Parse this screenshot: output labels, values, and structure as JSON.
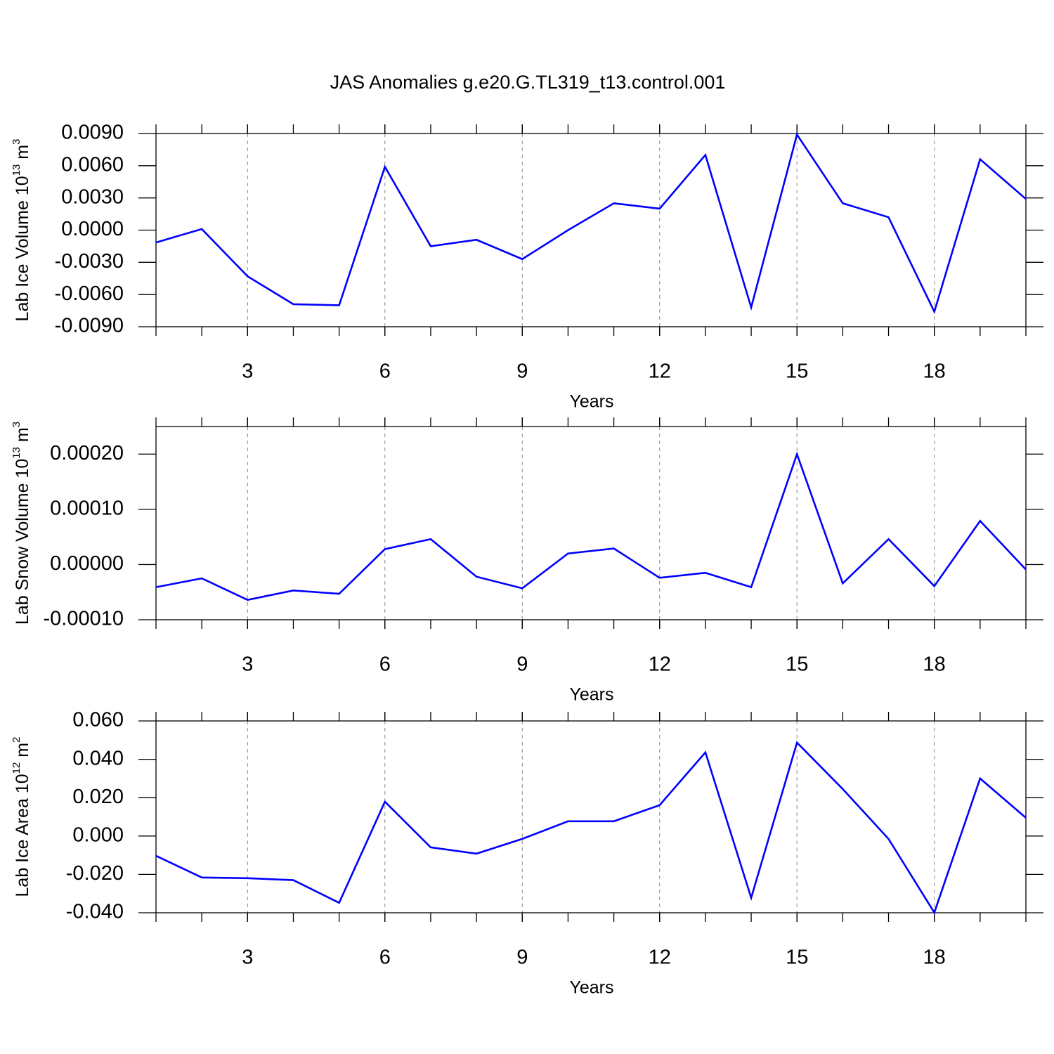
{
  "title": "JAS Anomalies g.e20.G.TL319_t13.control.001",
  "chart_data": [
    {
      "type": "line",
      "xlabel": "Years",
      "ylabel": [
        "Lab Ice Volume 10",
        "13",
        " m",
        "3"
      ],
      "x": [
        1,
        2,
        3,
        4,
        5,
        6,
        7,
        8,
        9,
        10,
        11,
        12,
        13,
        14,
        15,
        16,
        17,
        18,
        19,
        20
      ],
      "values": [
        -0.00115,
        0.0001,
        -0.0043,
        -0.0069,
        -0.007,
        0.0059,
        -0.0015,
        -0.0009,
        -0.0027,
        0.0,
        0.0025,
        0.002,
        0.007,
        -0.0072,
        0.0089,
        0.0025,
        0.0012,
        -0.0076,
        0.0066,
        0.0029
      ],
      "color": "#0000ff",
      "xlim": [
        1,
        20
      ],
      "xticks": [
        3,
        6,
        9,
        12,
        15,
        18
      ],
      "xminorticks": [
        1,
        2,
        3,
        4,
        5,
        6,
        7,
        8,
        9,
        10,
        11,
        12,
        13,
        14,
        15,
        16,
        17,
        18,
        19,
        20
      ],
      "ylim": [
        -0.009,
        0.009
      ],
      "yticks": [
        {
          "value": -0.009,
          "label": "-0.0090"
        },
        {
          "value": -0.006,
          "label": "-0.0060"
        },
        {
          "value": -0.003,
          "label": "-0.0030"
        },
        {
          "value": 0,
          "label": "0.0000"
        },
        {
          "value": 0.003,
          "label": "0.0030"
        },
        {
          "value": 0.006,
          "label": "0.0060"
        },
        {
          "value": 0.009,
          "label": "0.0090"
        }
      ],
      "grid": true
    },
    {
      "type": "line",
      "xlabel": "Years",
      "ylabel": [
        "Lab Snow Volume 10",
        "13",
        " m",
        "3"
      ],
      "x": [
        1,
        2,
        3,
        4,
        5,
        6,
        7,
        8,
        9,
        10,
        11,
        12,
        13,
        14,
        15,
        16,
        17,
        18,
        19,
        20
      ],
      "values": [
        -4.1e-05,
        -2.5e-05,
        -6.4e-05,
        -4.7e-05,
        -5.3e-05,
        2.8e-05,
        4.6e-05,
        -2.2e-05,
        -4.3e-05,
        2e-05,
        2.9e-05,
        -2.4e-05,
        -1.5e-05,
        -4.1e-05,
        0.0002,
        -3.4e-05,
        4.6e-05,
        -3.9e-05,
        7.9e-05,
        -9e-06
      ],
      "color": "#0000ff",
      "xlim": [
        1,
        20
      ],
      "xticks": [
        3,
        6,
        9,
        12,
        15,
        18
      ],
      "xminorticks": [
        1,
        2,
        3,
        4,
        5,
        6,
        7,
        8,
        9,
        10,
        11,
        12,
        13,
        14,
        15,
        16,
        17,
        18,
        19,
        20
      ],
      "ylim": [
        -0.0001,
        0.00025
      ],
      "yticks": [
        {
          "value": -0.0001,
          "label": "-0.00010"
        },
        {
          "value": 0,
          "label": "0.00000"
        },
        {
          "value": 0.0001,
          "label": "0.00010"
        },
        {
          "value": 0.0002,
          "label": "0.00020"
        }
      ],
      "grid": true
    },
    {
      "type": "line",
      "xlabel": "Years",
      "ylabel": [
        "Lab Ice Area 10",
        "12",
        " m",
        "2"
      ],
      "x": [
        1,
        2,
        3,
        4,
        5,
        6,
        7,
        8,
        9,
        10,
        11,
        12,
        13,
        14,
        15,
        16,
        17,
        18,
        19,
        20
      ],
      "values": [
        -0.0103,
        -0.0216,
        -0.022,
        -0.023,
        -0.0348,
        0.0179,
        -0.0059,
        -0.0092,
        -0.0015,
        0.0077,
        0.0077,
        0.0161,
        0.0436,
        -0.0322,
        0.0487,
        0.0245,
        -0.0015,
        -0.0399,
        0.03,
        0.0095
      ],
      "color": "#0000ff",
      "xlim": [
        1,
        20
      ],
      "xticks": [
        3,
        6,
        9,
        12,
        15,
        18
      ],
      "xminorticks": [
        1,
        2,
        3,
        4,
        5,
        6,
        7,
        8,
        9,
        10,
        11,
        12,
        13,
        14,
        15,
        16,
        17,
        18,
        19,
        20
      ],
      "ylim": [
        -0.04,
        0.06
      ],
      "yticks": [
        {
          "value": -0.04,
          "label": "-0.040"
        },
        {
          "value": -0.02,
          "label": "-0.020"
        },
        {
          "value": 0,
          "label": "0.000"
        },
        {
          "value": 0.02,
          "label": "0.020"
        },
        {
          "value": 0.04,
          "label": "0.040"
        },
        {
          "value": 0.06,
          "label": "0.060"
        }
      ],
      "grid": true
    }
  ]
}
